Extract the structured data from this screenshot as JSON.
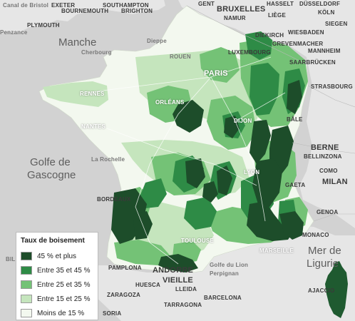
{
  "map": {
    "seas": {
      "manche": "Manche",
      "golfe_1": "Golfe de",
      "golfe_2": "Gascogne",
      "mer_1": "Mer de",
      "mer_2": "Ligurie"
    },
    "places": {
      "canal_bristol": "Canal de Bristol",
      "exeter": "EXETER",
      "bournemouth": "BOURNEMOUTH",
      "southampton": "SOUTHAMPTON",
      "brighton": "BRIGHTON",
      "plymouth": "PLYMOUTH",
      "penzance": "Penzance",
      "gent": "GENT",
      "bruxelles": "BRUXELLES",
      "hasselt": "HASSELT",
      "dusseldorf": "DÜSSELDORF",
      "namur": "NAMUR",
      "liege": "LIÈGE",
      "koln": "KÖLN",
      "siegen": "SIEGEN",
      "dieppe": "Dieppe",
      "cherbourg": "Cherbourg",
      "rouen": "ROUEN",
      "luxembourg": "LUXEMBOURG",
      "diekirch": "DIEKIRCH",
      "wiesbaden": "WIESBADEN",
      "grevenmacher": "GREVENMACHER",
      "mannheim": "MANNHEIM",
      "saarbrucken": "SAARBRÜCKEN",
      "strasbourg": "STRASBOURG",
      "paris": "PARIS",
      "rennes": "RENNES",
      "orleans": "ORLÉANS",
      "nantes": "NANTES",
      "dijon": "DIJON",
      "larochelle": "La Rochelle",
      "bale": "BÂLE",
      "berne": "BERNE",
      "bellinzona": "BELLINZONA",
      "como": "COMO",
      "milan": "MILAN",
      "gaeta": "GAETA",
      "lyon": "LYON",
      "bordeaux": "BORDEAUX",
      "genoa": "GENOA",
      "toulouse": "TOULOUSE",
      "monaco": "MONACO",
      "marseille": "MARSEILLE",
      "golfe_lion": "Golfe du Lion",
      "perpignan": "Perpignan",
      "andorre": "ANDORRE",
      "vieille": "VIEILLE",
      "pamplona": "PAMPLONA",
      "zaragoza": "ZARAGOZA",
      "barcelona": "BARCELONA",
      "tarragona": "TARRAGONA",
      "huesca": "HUESCA",
      "lleida": "LLEIDA",
      "ajaccio": "AJACCIO",
      "soria": "SORIA",
      "bilbao": "BILBAO"
    }
  },
  "legend": {
    "title": "Taux de boisement",
    "items": [
      {
        "label": "45 % et plus",
        "color": "#1d4d2a"
      },
      {
        "label": "Entre 35 et 45 %",
        "color": "#2e8b46"
      },
      {
        "label": "Entre 25 et 35 %",
        "color": "#74c276"
      },
      {
        "label": "Entre 15 et 25 %",
        "color": "#c5e5bd"
      },
      {
        "label": "Moins de 15 %",
        "color": "#f3f8ef"
      }
    ]
  }
}
